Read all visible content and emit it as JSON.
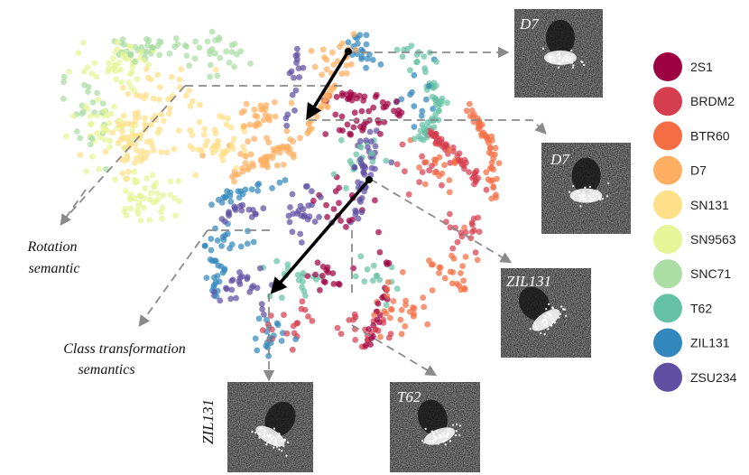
{
  "chart_data": {
    "type": "scatter",
    "title": "",
    "xlabel": "",
    "ylabel": "",
    "grid": false,
    "legend_position": "right",
    "classes": [
      {
        "name": "2S1",
        "color": "#9e0142"
      },
      {
        "name": "BRDM2",
        "color": "#d53e4f"
      },
      {
        "name": "BTR60",
        "color": "#f46d43"
      },
      {
        "name": "D7",
        "color": "#fdae61"
      },
      {
        "name": "SN131",
        "color": "#fee08b"
      },
      {
        "name": "SN9563",
        "color": "#e6f598"
      },
      {
        "name": "SNC71",
        "color": "#abdda4"
      },
      {
        "name": "T62",
        "color": "#66c2a5"
      },
      {
        "name": "ZIL131",
        "color": "#3288bd"
      },
      {
        "name": "ZSU234",
        "color": "#5e4fa2"
      }
    ],
    "annotations": {
      "rotation": "Rotation semantic",
      "rotation_lines": [
        "Rotation",
        "semantic"
      ],
      "class_transformation": "Class transformation semantics",
      "class_transformation_lines": [
        "Class transformation",
        "semantics"
      ]
    },
    "image_labels": [
      "D7",
      "D7",
      "ZIL131",
      "ZIL131",
      "T62"
    ]
  }
}
